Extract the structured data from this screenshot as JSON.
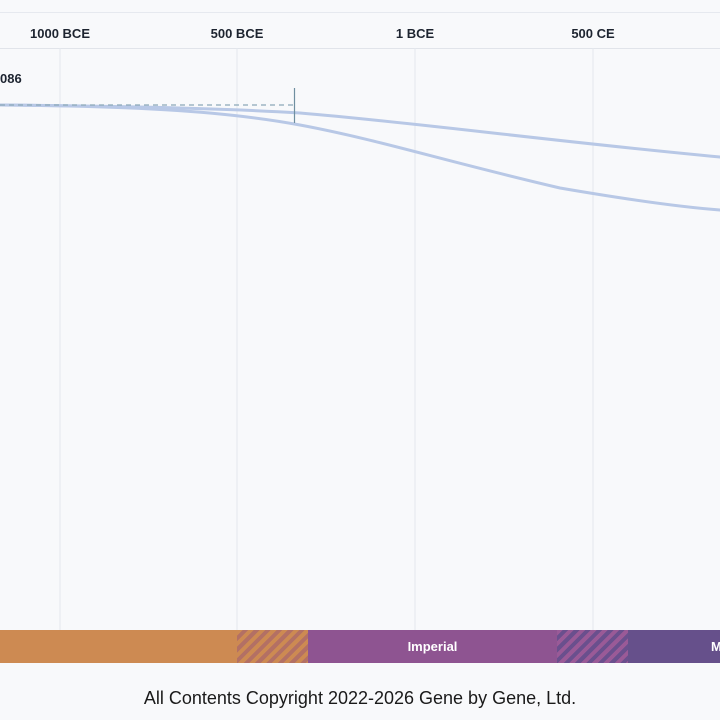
{
  "axis": {
    "ticks": [
      "1000 BCE",
      "500 BCE",
      "1 BCE",
      "500 CE"
    ]
  },
  "series": {
    "cut_value_label": "086"
  },
  "eras": [
    {
      "label": "",
      "color": "#cd8a52"
    },
    {
      "label": "",
      "color": "#b37064",
      "striped": true
    },
    {
      "label": "Imperial",
      "color": "#8e5491"
    },
    {
      "label": "",
      "color": "#7d4f8f",
      "striped": true
    },
    {
      "label": "M",
      "color": "#66508b"
    }
  ],
  "footer": {
    "copyright": "All Contents Copyright 2022-2026 Gene by Gene, Ltd."
  },
  "colors": {
    "curve": "#b8c8e6",
    "reference_line": "#8aa9b8"
  }
}
